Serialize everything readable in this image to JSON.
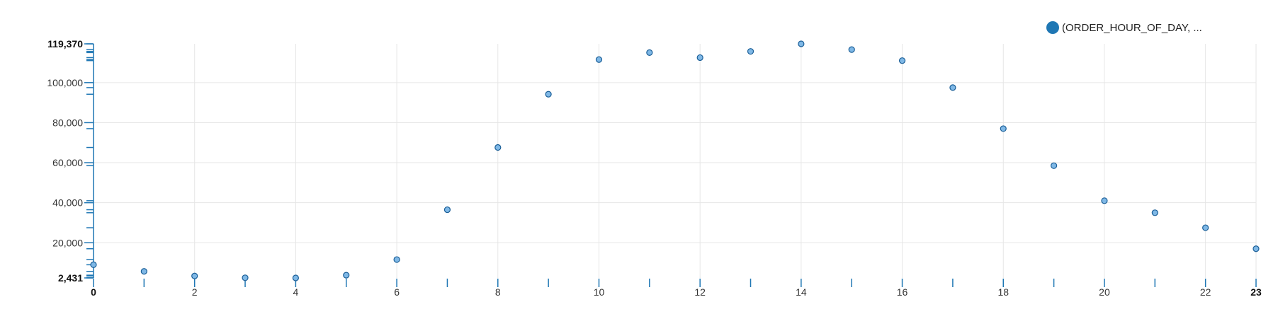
{
  "chart_data": {
    "type": "scatter",
    "title": "",
    "xlabel": "",
    "ylabel": "",
    "xlim": [
      0,
      23
    ],
    "ylim": [
      2431,
      119370
    ],
    "x_ticks": [
      0,
      2,
      4,
      6,
      8,
      10,
      12,
      14,
      16,
      18,
      20,
      22,
      23
    ],
    "x_tick_labels": [
      "0",
      "2",
      "4",
      "6",
      "8",
      "10",
      "12",
      "14",
      "16",
      "18",
      "20",
      "22",
      "23"
    ],
    "y_ticks": [
      20000,
      40000,
      60000,
      80000,
      100000
    ],
    "y_tick_labels": [
      "20,000",
      "40,000",
      "60,000",
      "80,000",
      "100,000"
    ],
    "y_extent_labels": [
      "2,431",
      "119,370"
    ],
    "grid": true,
    "legend_position": "top-right",
    "series": [
      {
        "name": "(ORDER_HOUR_OF_DAY, ...",
        "color": "#1f77b4",
        "x": [
          0,
          1,
          2,
          3,
          4,
          5,
          6,
          7,
          8,
          9,
          10,
          11,
          12,
          13,
          14,
          15,
          16,
          17,
          18,
          19,
          20,
          21,
          22,
          23
        ],
        "y": [
          9000,
          5700,
          3400,
          2500,
          2431,
          3800,
          11600,
          36500,
          67600,
          94200,
          111500,
          115000,
          112500,
          115600,
          119370,
          116500,
          111000,
          97500,
          77000,
          58500,
          41000,
          35000,
          27500,
          17000
        ]
      }
    ]
  }
}
